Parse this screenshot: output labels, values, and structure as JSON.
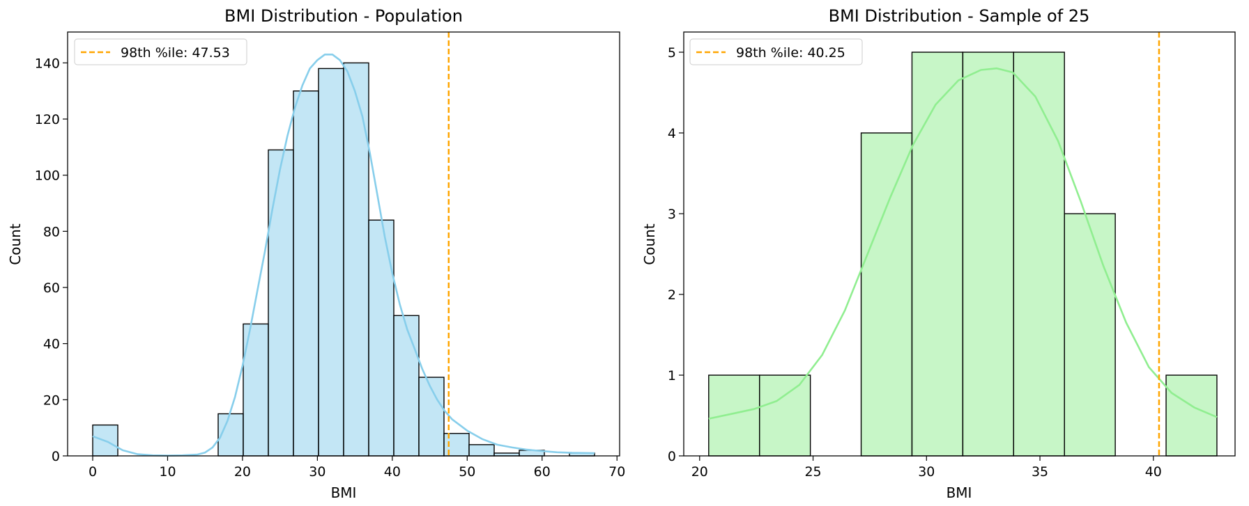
{
  "chart_data": [
    {
      "type": "bar",
      "title": "BMI Distribution - Population",
      "xlabel": "BMI",
      "ylabel": "Count",
      "xlim": [
        -3.35,
        70.35
      ],
      "ylim": [
        0,
        151
      ],
      "xticks": [
        0,
        10,
        20,
        30,
        40,
        50,
        60,
        70
      ],
      "yticks": [
        0,
        20,
        40,
        60,
        80,
        100,
        120,
        140
      ],
      "bar_color": "#87CEEB",
      "kde_color": "#87CEEB",
      "bins": [
        {
          "x0": 0.0,
          "x1": 3.35,
          "count": 11
        },
        {
          "x0": 3.35,
          "x1": 6.7,
          "count": 0
        },
        {
          "x0": 6.7,
          "x1": 10.05,
          "count": 0
        },
        {
          "x0": 10.05,
          "x1": 13.4,
          "count": 0
        },
        {
          "x0": 13.4,
          "x1": 16.75,
          "count": 0
        },
        {
          "x0": 16.75,
          "x1": 20.1,
          "count": 15
        },
        {
          "x0": 20.1,
          "x1": 23.45,
          "count": 47
        },
        {
          "x0": 23.45,
          "x1": 26.8,
          "count": 109
        },
        {
          "x0": 26.8,
          "x1": 30.15,
          "count": 130
        },
        {
          "x0": 30.15,
          "x1": 33.5,
          "count": 138
        },
        {
          "x0": 33.5,
          "x1": 36.85,
          "count": 140
        },
        {
          "x0": 36.85,
          "x1": 40.2,
          "count": 84
        },
        {
          "x0": 40.2,
          "x1": 43.55,
          "count": 50
        },
        {
          "x0": 43.55,
          "x1": 46.9,
          "count": 28
        },
        {
          "x0": 46.9,
          "x1": 50.25,
          "count": 8
        },
        {
          "x0": 50.25,
          "x1": 53.6,
          "count": 4
        },
        {
          "x0": 53.6,
          "x1": 56.95,
          "count": 1
        },
        {
          "x0": 56.95,
          "x1": 60.3,
          "count": 2
        },
        {
          "x0": 60.3,
          "x1": 63.65,
          "count": 0
        },
        {
          "x0": 63.65,
          "x1": 67.0,
          "count": 1
        }
      ],
      "kde": {
        "x": [
          0,
          2,
          4,
          6,
          8,
          10,
          12,
          14,
          15,
          16,
          17,
          18,
          19,
          20,
          21,
          22,
          23,
          24,
          25,
          26,
          27,
          28,
          29,
          30,
          31,
          32,
          33,
          34,
          35,
          36,
          37,
          38,
          39,
          40,
          41,
          42,
          43,
          44,
          45,
          46,
          47,
          48,
          50,
          52,
          54,
          56,
          58,
          60,
          62,
          64,
          67
        ],
        "y": [
          7,
          5,
          2,
          0.6,
          0.2,
          0.1,
          0.2,
          0.5,
          1.2,
          3,
          6.5,
          12.5,
          21,
          32,
          45,
          59,
          73,
          88,
          102,
          114,
          124,
          132,
          138,
          141,
          143,
          143,
          141,
          137,
          130,
          121,
          108,
          93,
          78,
          65,
          54,
          45,
          38,
          31,
          25,
          20,
          16,
          13,
          9,
          6,
          4,
          3,
          2.2,
          1.7,
          1.3,
          1.1,
          1
        ]
      },
      "percentile_line": {
        "x": 47.53,
        "color": "#FFA500",
        "label": "98th %ile: 47.53"
      },
      "legend_position": "upper-left"
    },
    {
      "type": "bar",
      "title": "BMI Distribution - Sample of 25",
      "xlabel": "BMI",
      "ylabel": "Count",
      "xlim": [
        19.3,
        43.6
      ],
      "ylim": [
        0,
        5.25
      ],
      "xticks": [
        20,
        25,
        30,
        35,
        40
      ],
      "yticks": [
        0,
        1,
        2,
        3,
        4,
        5
      ],
      "bar_color": "#90EE90",
      "kde_color": "#90EE90",
      "bins": [
        {
          "x0": 20.4,
          "x1": 22.64,
          "count": 1
        },
        {
          "x0": 22.64,
          "x1": 24.88,
          "count": 1
        },
        {
          "x0": 24.88,
          "x1": 27.12,
          "count": 0
        },
        {
          "x0": 27.12,
          "x1": 29.36,
          "count": 4
        },
        {
          "x0": 29.36,
          "x1": 31.6,
          "count": 5
        },
        {
          "x0": 31.6,
          "x1": 33.84,
          "count": 5
        },
        {
          "x0": 33.84,
          "x1": 36.08,
          "count": 5
        },
        {
          "x0": 36.08,
          "x1": 38.32,
          "count": 3
        },
        {
          "x0": 38.32,
          "x1": 40.56,
          "count": 0
        },
        {
          "x0": 40.56,
          "x1": 42.8,
          "count": 1
        }
      ],
      "kde": {
        "x": [
          20.4,
          21.4,
          22.4,
          23.4,
          24.4,
          25.4,
          26.4,
          27.4,
          28.4,
          29.4,
          30.4,
          31.4,
          32.4,
          33.1,
          33.8,
          34.8,
          35.8,
          36.8,
          37.8,
          38.8,
          39.8,
          40.8,
          41.8,
          42.8
        ],
        "y": [
          0.46,
          0.52,
          0.58,
          0.68,
          0.88,
          1.25,
          1.8,
          2.5,
          3.2,
          3.85,
          4.35,
          4.65,
          4.78,
          4.8,
          4.75,
          4.45,
          3.9,
          3.15,
          2.35,
          1.65,
          1.1,
          0.78,
          0.6,
          0.48
        ]
      },
      "percentile_line": {
        "x": 40.25,
        "color": "#FFA500",
        "label": "98th %ile: 40.25"
      },
      "legend_position": "upper-left"
    }
  ]
}
